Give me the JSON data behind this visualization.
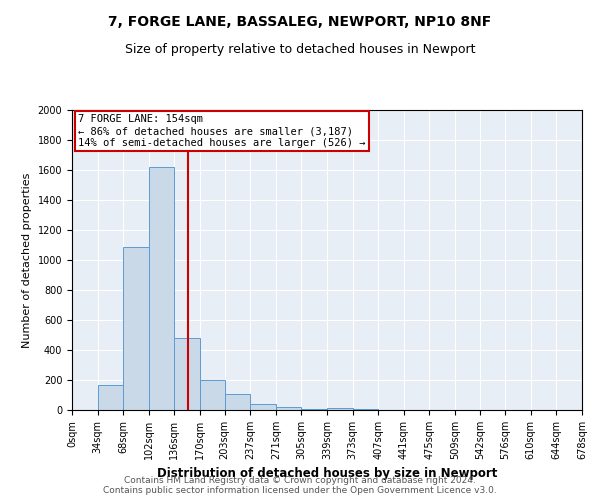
{
  "title1": "7, FORGE LANE, BASSALEG, NEWPORT, NP10 8NF",
  "title2": "Size of property relative to detached houses in Newport",
  "xlabel": "Distribution of detached houses by size in Newport",
  "ylabel": "Number of detached properties",
  "bin_edges": [
    0,
    34,
    68,
    102,
    136,
    170,
    203,
    237,
    271,
    305,
    339,
    373,
    407,
    441,
    475,
    509,
    542,
    576,
    610,
    644,
    678
  ],
  "bar_heights": [
    0,
    170,
    1090,
    1620,
    480,
    200,
    105,
    40,
    20,
    10,
    15,
    5,
    0,
    0,
    0,
    0,
    0,
    0,
    0,
    0
  ],
  "bar_color": "#c9d9e8",
  "bar_edgecolor": "#5b9bd5",
  "property_size": 154,
  "vline_color": "#cc0000",
  "annotation_text": "7 FORGE LANE: 154sqm\n← 86% of detached houses are smaller (3,187)\n14% of semi-detached houses are larger (526) →",
  "annotation_boxcolor": "white",
  "annotation_edgecolor": "#cc0000",
  "ylim": [
    0,
    2000
  ],
  "yticks": [
    0,
    200,
    400,
    600,
    800,
    1000,
    1200,
    1400,
    1600,
    1800,
    2000
  ],
  "xlim": [
    0,
    678
  ],
  "background_color": "#e8eef5",
  "footer_line1": "Contains HM Land Registry data © Crown copyright and database right 2024.",
  "footer_line2": "Contains public sector information licensed under the Open Government Licence v3.0.",
  "title1_fontsize": 10,
  "title2_fontsize": 9,
  "xlabel_fontsize": 8.5,
  "ylabel_fontsize": 8,
  "tick_fontsize": 7,
  "annot_fontsize": 7.5,
  "footer_fontsize": 6.5
}
